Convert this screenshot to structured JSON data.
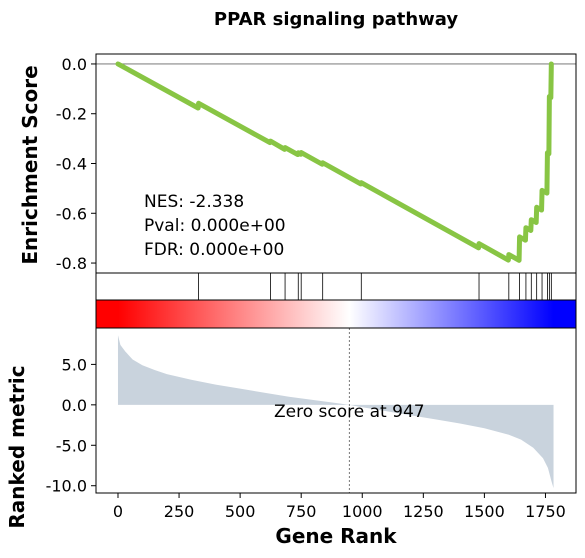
{
  "chart_data": {
    "type": "line",
    "title": "PPAR signaling pathway",
    "xlabel": "Gene Rank",
    "xlim": [
      -90,
      1875
    ],
    "xticks": [
      0,
      250,
      500,
      750,
      1000,
      1250,
      1500,
      1750
    ],
    "xtick_labels": [
      "0",
      "250",
      "500",
      "750",
      "1000",
      "1250",
      "1500",
      "1750"
    ],
    "enrichment": {
      "ylabel": "Enrichment Score",
      "ylim": [
        -0.84,
        0.04
      ],
      "yticks": [
        0.0,
        -0.2,
        -0.4,
        -0.6,
        -0.8
      ],
      "ytick_labels": [
        "0.0",
        "-0.2",
        "-0.4",
        "-0.6",
        "-0.8"
      ],
      "line_color": "#88c544",
      "zero_line_color": "#888888",
      "points": [
        [
          0,
          0.0
        ],
        [
          328,
          -0.177
        ],
        [
          330,
          -0.158
        ],
        [
          622,
          -0.316
        ],
        [
          624,
          -0.31
        ],
        [
          682,
          -0.343
        ],
        [
          684,
          -0.336
        ],
        [
          736,
          -0.364
        ],
        [
          738,
          -0.357
        ],
        [
          748,
          -0.363
        ],
        [
          750,
          -0.356
        ],
        [
          836,
          -0.403
        ],
        [
          838,
          -0.397
        ],
        [
          994,
          -0.482
        ],
        [
          996,
          -0.477
        ],
        [
          1476,
          -0.739
        ],
        [
          1478,
          -0.722
        ],
        [
          1598,
          -0.788
        ],
        [
          1600,
          -0.766
        ],
        [
          1642,
          -0.789
        ],
        [
          1644,
          -0.695
        ],
        [
          1668,
          -0.708
        ],
        [
          1670,
          -0.658
        ],
        [
          1690,
          -0.669
        ],
        [
          1692,
          -0.626
        ],
        [
          1712,
          -0.637
        ],
        [
          1714,
          -0.576
        ],
        [
          1734,
          -0.587
        ],
        [
          1736,
          -0.508
        ],
        [
          1756,
          -0.519
        ],
        [
          1758,
          -0.357
        ],
        [
          1764,
          -0.361
        ],
        [
          1766,
          -0.131
        ],
        [
          1772,
          -0.135
        ],
        [
          1774,
          0.0
        ]
      ],
      "annotation": [
        "NES: -2.338",
        "Pval: 0.000e+00",
        "FDR: 0.000e+00"
      ]
    },
    "hits": {
      "positions": [
        330,
        624,
        684,
        738,
        750,
        838,
        996,
        1478,
        1600,
        1644,
        1670,
        1692,
        1714,
        1736,
        1758,
        1766,
        1774
      ],
      "color": "#000000"
    },
    "heatmap": {
      "colormap": "bwr reversed: red at rank 0, white at zero crossing, blue at last rank",
      "colors": [
        "#ff0000",
        "#ffffff",
        "#0000ff"
      ]
    },
    "ranked_metric": {
      "ylabel": "Ranked metric",
      "ylim": [
        -10.9,
        9.5
      ],
      "yticks": [
        5.0,
        0.0,
        -5.0,
        -10.0
      ],
      "ytick_labels": [
        "5.0",
        "0.0",
        "-5.0",
        "-10.0"
      ],
      "fill_color": "#c9d3dd",
      "zero_cross": 947,
      "zero_label": "Zero score at 947",
      "points": [
        [
          0,
          8.6
        ],
        [
          10,
          7.4
        ],
        [
          30,
          6.6
        ],
        [
          60,
          5.6
        ],
        [
          100,
          4.9
        ],
        [
          150,
          4.3
        ],
        [
          200,
          3.8
        ],
        [
          300,
          3.1
        ],
        [
          400,
          2.5
        ],
        [
          500,
          2.0
        ],
        [
          600,
          1.5
        ],
        [
          700,
          1.0
        ],
        [
          800,
          0.6
        ],
        [
          900,
          0.2
        ],
        [
          947,
          0.0
        ],
        [
          1000,
          -0.3
        ],
        [
          1100,
          -0.8
        ],
        [
          1200,
          -1.3
        ],
        [
          1300,
          -1.8
        ],
        [
          1400,
          -2.3
        ],
        [
          1500,
          -2.9
        ],
        [
          1600,
          -3.7
        ],
        [
          1650,
          -4.3
        ],
        [
          1700,
          -5.3
        ],
        [
          1740,
          -6.6
        ],
        [
          1760,
          -7.8
        ],
        [
          1775,
          -9.5
        ],
        [
          1783,
          -10.3
        ]
      ]
    }
  }
}
